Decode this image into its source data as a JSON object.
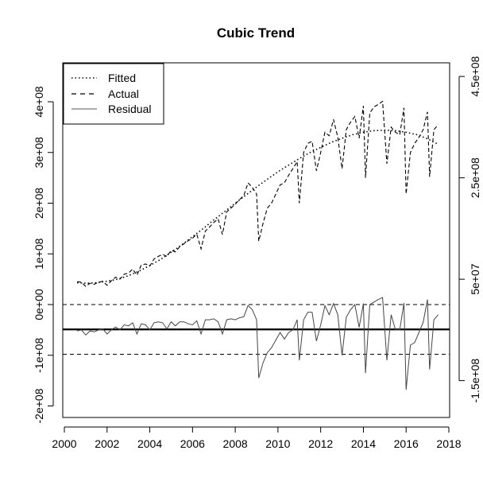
{
  "chart_data": {
    "type": "line",
    "title": "Cubic Trend",
    "xlabel": "",
    "ylabel": "",
    "xlim": [
      2000,
      2018
    ],
    "x_ticks": [
      2000,
      2002,
      2004,
      2006,
      2008,
      2010,
      2012,
      2014,
      2016,
      2018
    ],
    "x_tick_labels": [
      "2000",
      "2002",
      "2004",
      "2006",
      "2008",
      "2010",
      "2012",
      "2014",
      "2016",
      "2018"
    ],
    "left_axis": {
      "ylim": [
        -200000000,
        400000000
      ],
      "ticks": [
        -200000000,
        -100000000,
        0,
        100000000,
        200000000,
        300000000,
        400000000
      ],
      "tick_labels": [
        "-2e+08",
        "-1e+08",
        "0e+00",
        "1e+08",
        "2e+08",
        "3e+08",
        "4e+08"
      ]
    },
    "right_axis": {
      "ticks": [
        -150000000,
        50000000,
        250000000,
        450000000
      ],
      "tick_labels": [
        "-1.5e+08",
        "5e+07",
        "2.5e+08",
        "4.5e+08"
      ]
    },
    "reference_lines": {
      "zero": 0,
      "upper_band": 0,
      "lower_band": -98000000,
      "residual_zero": -49000000
    },
    "legend": {
      "position": "top-left",
      "entries": [
        {
          "label": "Fitted",
          "style": "dotted"
        },
        {
          "label": "Actual",
          "style": "dashed"
        },
        {
          "label": "Residual",
          "style": "solid"
        }
      ]
    },
    "grid": false,
    "series": [
      {
        "name": "Fitted",
        "style": "dotted",
        "x": [
          2000.6,
          2001.0,
          2001.5,
          2002.0,
          2002.5,
          2003.0,
          2003.5,
          2004.0,
          2004.5,
          2005.0,
          2005.5,
          2006.0,
          2006.5,
          2007.0,
          2007.5,
          2008.0,
          2008.5,
          2009.0,
          2009.5,
          2010.0,
          2010.5,
          2011.0,
          2011.5,
          2012.0,
          2012.5,
          2013.0,
          2013.5,
          2014.0,
          2014.5,
          2015.0,
          2015.5,
          2016.0,
          2016.5,
          2017.0,
          2017.5
        ],
        "values": [
          43000000,
          42000000,
          43000000,
          46000000,
          50000000,
          57000000,
          66000000,
          77000000,
          89000000,
          103000000,
          118000000,
          134000000,
          150000000,
          167000000,
          183000000,
          200000000,
          216000000,
          232000000,
          247000000,
          262000000,
          275000000,
          288000000,
          300000000,
          310000000,
          320000000,
          328000000,
          335000000,
          340000000,
          343000000,
          344000000,
          343000000,
          340000000,
          335000000,
          327000000,
          316000000
        ]
      },
      {
        "name": "Actual",
        "style": "dashed",
        "x": [
          2000.6,
          2000.8,
          2001.0,
          2001.2,
          2001.4,
          2001.6,
          2001.8,
          2002.0,
          2002.2,
          2002.4,
          2002.6,
          2002.8,
          2003.0,
          2003.2,
          2003.4,
          2003.6,
          2003.8,
          2004.0,
          2004.2,
          2004.4,
          2004.6,
          2004.8,
          2005.0,
          2005.2,
          2005.4,
          2005.6,
          2005.8,
          2006.0,
          2006.2,
          2006.4,
          2006.6,
          2006.8,
          2007.0,
          2007.2,
          2007.4,
          2007.6,
          2007.8,
          2008.0,
          2008.2,
          2008.4,
          2008.6,
          2008.8,
          2009.0,
          2009.1,
          2009.3,
          2009.5,
          2009.7,
          2009.9,
          2010.1,
          2010.3,
          2010.5,
          2010.7,
          2010.9,
          2011.0,
          2011.2,
          2011.4,
          2011.6,
          2011.8,
          2012.0,
          2012.2,
          2012.4,
          2012.6,
          2012.8,
          2013.0,
          2013.2,
          2013.4,
          2013.6,
          2013.8,
          2014.0,
          2014.1,
          2014.3,
          2014.5,
          2014.7,
          2014.9,
          2015.1,
          2015.3,
          2015.5,
          2015.7,
          2015.9,
          2016.0,
          2016.2,
          2016.4,
          2016.6,
          2016.8,
          2017.0,
          2017.1,
          2017.3,
          2017.5
        ],
        "values": [
          45000000,
          44000000,
          36000000,
          42000000,
          40000000,
          44000000,
          46000000,
          38000000,
          47000000,
          54000000,
          50000000,
          60000000,
          62000000,
          70000000,
          58000000,
          78000000,
          80000000,
          76000000,
          90000000,
          95000000,
          99000000,
          95000000,
          107000000,
          104000000,
          114000000,
          120000000,
          126000000,
          131000000,
          139000000,
          110000000,
          145000000,
          153000000,
          162000000,
          169000000,
          138000000,
          183000000,
          190000000,
          198000000,
          207000000,
          215000000,
          240000000,
          231000000,
          218000000,
          125000000,
          160000000,
          190000000,
          200000000,
          218000000,
          236000000,
          240000000,
          255000000,
          268000000,
          282000000,
          200000000,
          300000000,
          318000000,
          322000000,
          264000000,
          300000000,
          340000000,
          333000000,
          365000000,
          330000000,
          268000000,
          345000000,
          360000000,
          371000000,
          328000000,
          392000000,
          250000000,
          378000000,
          390000000,
          395000000,
          401000000,
          278000000,
          350000000,
          340000000,
          335000000,
          388000000,
          218000000,
          300000000,
          318000000,
          330000000,
          345000000,
          380000000,
          252000000,
          345000000,
          355000000
        ]
      },
      {
        "name": "Residual",
        "style": "solid",
        "x": [
          2000.6,
          2000.8,
          2001.0,
          2001.2,
          2001.4,
          2001.6,
          2001.8,
          2002.0,
          2002.2,
          2002.4,
          2002.6,
          2002.8,
          2003.0,
          2003.2,
          2003.4,
          2003.6,
          2003.8,
          2004.0,
          2004.2,
          2004.4,
          2004.6,
          2004.8,
          2005.0,
          2005.2,
          2005.4,
          2005.6,
          2005.8,
          2006.0,
          2006.2,
          2006.4,
          2006.6,
          2006.8,
          2007.0,
          2007.2,
          2007.4,
          2007.6,
          2007.8,
          2008.0,
          2008.2,
          2008.4,
          2008.6,
          2008.8,
          2009.0,
          2009.1,
          2009.3,
          2009.5,
          2009.7,
          2009.9,
          2010.1,
          2010.3,
          2010.5,
          2010.7,
          2010.9,
          2011.0,
          2011.2,
          2011.4,
          2011.6,
          2011.8,
          2012.0,
          2012.2,
          2012.4,
          2012.6,
          2012.8,
          2013.0,
          2013.2,
          2013.4,
          2013.6,
          2013.8,
          2014.0,
          2014.1,
          2014.3,
          2014.5,
          2014.7,
          2014.9,
          2015.1,
          2015.3,
          2015.5,
          2015.7,
          2015.9,
          2016.0,
          2016.2,
          2016.4,
          2016.6,
          2016.8,
          2017.0,
          2017.1,
          2017.3,
          2017.5
        ],
        "values": [
          -52000000,
          -50000000,
          -60000000,
          -52000000,
          -54000000,
          -50000000,
          -48000000,
          -58000000,
          -50000000,
          -44000000,
          -50000000,
          -40000000,
          -42000000,
          -36000000,
          -58000000,
          -38000000,
          -40000000,
          -50000000,
          -36000000,
          -34000000,
          -36000000,
          -48000000,
          -34000000,
          -42000000,
          -34000000,
          -34000000,
          -38000000,
          -40000000,
          -32000000,
          -58000000,
          -30000000,
          -30000000,
          -28000000,
          -34000000,
          -58000000,
          -30000000,
          -28000000,
          -30000000,
          -26000000,
          -24000000,
          -2000000,
          -10000000,
          -30000000,
          -145000000,
          -115000000,
          -95000000,
          -85000000,
          -70000000,
          -55000000,
          -68000000,
          -55000000,
          -50000000,
          -30000000,
          -110000000,
          -30000000,
          -15000000,
          -15000000,
          -72000000,
          -40000000,
          -2000000,
          -20000000,
          2000000,
          -20000000,
          -100000000,
          -25000000,
          -10000000,
          0,
          -45000000,
          2000000,
          -135000000,
          0,
          5000000,
          10000000,
          14000000,
          -110000000,
          -20000000,
          -50000000,
          -50000000,
          3000000,
          -168000000,
          -80000000,
          -75000000,
          -55000000,
          -35000000,
          10000000,
          -128000000,
          -30000000,
          -20000000
        ]
      }
    ]
  }
}
